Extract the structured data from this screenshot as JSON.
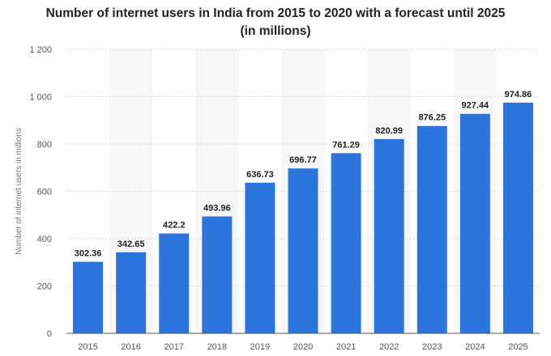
{
  "chart_data": {
    "type": "bar",
    "title_line1": "Number of internet users in India from 2015 to 2020 with a forecast until 2025",
    "title_line2": "(in millions)",
    "ylabel": "Number of internet users in millions",
    "xlabel": "",
    "categories": [
      "2015",
      "2016",
      "2017",
      "2018",
      "2019",
      "2020",
      "2021",
      "2022",
      "2023",
      "2024",
      "2025"
    ],
    "values": [
      302.36,
      342.65,
      422.2,
      493.96,
      636.73,
      696.77,
      761.29,
      820.99,
      876.25,
      927.44,
      974.86
    ],
    "data_labels": [
      "302.36",
      "342.65",
      "422.2",
      "493.96",
      "636.73",
      "696.77",
      "761.29",
      "820.99",
      "876.25",
      "927.44",
      "974.86"
    ],
    "ylim": [
      0,
      1200
    ],
    "yticks": [
      0,
      200,
      400,
      600,
      800,
      1000,
      1200
    ],
    "ytick_labels": [
      "0",
      "200",
      "400",
      "600",
      "800",
      "1 000",
      "1 200"
    ],
    "grid": true,
    "bar_color": "#2b75dc",
    "band_color": "#f7f7f7",
    "grid_color": "#d9d9d9"
  }
}
